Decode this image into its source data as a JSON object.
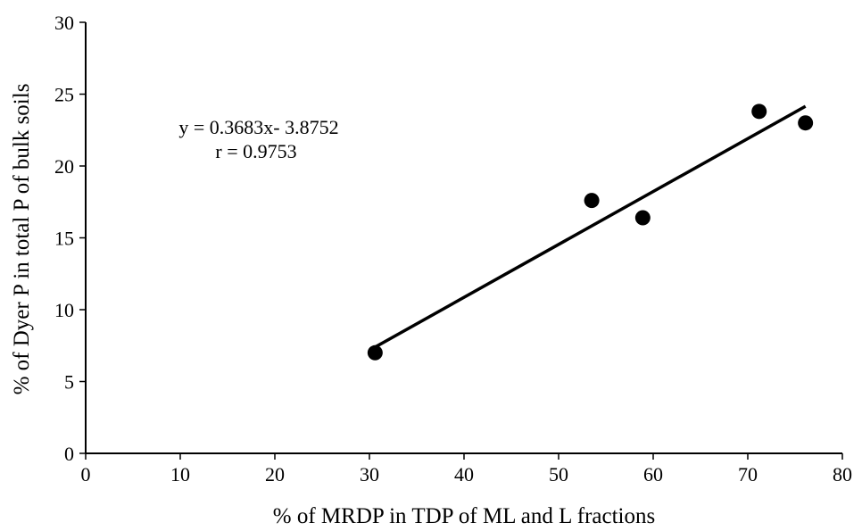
{
  "chart_data": {
    "type": "scatter",
    "title": "",
    "xlabel": "% of MRDP in TDP of ML and L fractions",
    "ylabel": "% of Dyer P in total P of bulk soils",
    "xlim": [
      0,
      80
    ],
    "ylim": [
      0,
      30
    ],
    "x_ticks": [
      0,
      10,
      20,
      30,
      40,
      50,
      60,
      70,
      80
    ],
    "y_ticks": [
      0,
      5,
      10,
      15,
      20,
      25,
      30
    ],
    "grid": false,
    "legend": "none",
    "series": [
      {
        "points": [
          {
            "x": 30.6,
            "y": 7.0
          },
          {
            "x": 53.5,
            "y": 17.6
          },
          {
            "x": 58.9,
            "y": 16.4
          },
          {
            "x": 71.2,
            "y": 23.8
          },
          {
            "x": 76.1,
            "y": 23.0
          }
        ]
      }
    ],
    "trendline": {
      "slope": 0.3683,
      "intercept": -3.8752,
      "x_range": [
        30.6,
        76.1
      ]
    },
    "annotations": {
      "equation": "y = 0.3683x- 3.8752",
      "r": "r = 0.9753"
    }
  }
}
